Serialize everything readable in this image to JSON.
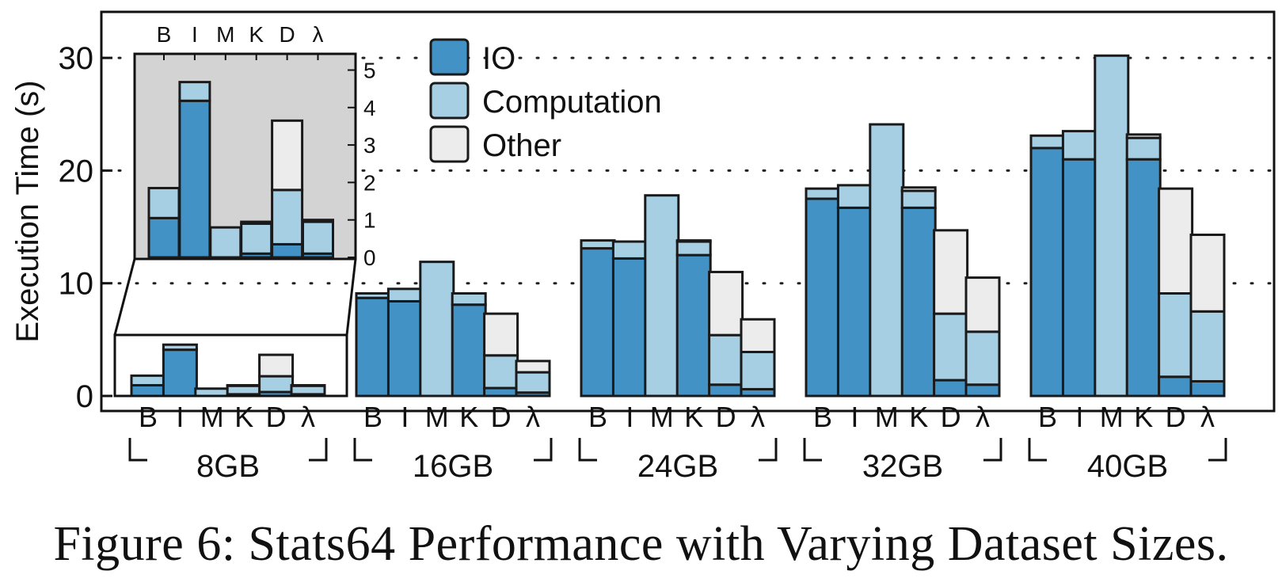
{
  "caption": "Figure 6: Stats64 Performance with Varying Dataset Sizes.",
  "colors": {
    "io": "#4292c6",
    "computation": "#a6cfe4",
    "other": "#ececec",
    "inset_background": "#d3d3d3",
    "edge": "#1a1a1a"
  },
  "chart_data": {
    "type": "bar",
    "stacked": true,
    "ylabel": "Execution Time (s)",
    "ylim": [
      0,
      33
    ],
    "yticks": [
      0,
      10,
      20,
      30
    ],
    "grid": "horizontal dotted",
    "legend_placement": "top-center",
    "legend": [
      "IO",
      "Computation",
      "Other"
    ],
    "systems": [
      "B",
      "I",
      "M",
      "K",
      "D",
      "λ"
    ],
    "groups": [
      {
        "label": "8GB",
        "bars": [
          {
            "system": "B",
            "io": 0.95,
            "computation": 0.85,
            "other": 0.0
          },
          {
            "system": "I",
            "io": 4.1,
            "computation": 0.45,
            "other": 0.0
          },
          {
            "system": "M",
            "io": 0.0,
            "computation": 0.65,
            "other": 0.0
          },
          {
            "system": "K",
            "io": 0.15,
            "computation": 0.75,
            "other": 0.05
          },
          {
            "system": "D",
            "io": 0.35,
            "computation": 1.4,
            "other": 1.9
          },
          {
            "system": "λ",
            "io": 0.15,
            "computation": 0.75,
            "other": 0.05
          }
        ]
      },
      {
        "label": "16GB",
        "bars": [
          {
            "system": "B",
            "io": 8.7,
            "computation": 0.4,
            "other": 0.0
          },
          {
            "system": "I",
            "io": 8.4,
            "computation": 1.1,
            "other": 0.0
          },
          {
            "system": "M",
            "io": 0.0,
            "computation": 11.9,
            "other": 0.0
          },
          {
            "system": "K",
            "io": 8.1,
            "computation": 1.0,
            "other": 0.0
          },
          {
            "system": "D",
            "io": 0.7,
            "computation": 2.9,
            "other": 3.7
          },
          {
            "system": "λ",
            "io": 0.3,
            "computation": 1.8,
            "other": 1.0
          }
        ]
      },
      {
        "label": "24GB",
        "bars": [
          {
            "system": "B",
            "io": 13.1,
            "computation": 0.7,
            "other": 0.0
          },
          {
            "system": "I",
            "io": 12.2,
            "computation": 1.5,
            "other": 0.0
          },
          {
            "system": "M",
            "io": 0.0,
            "computation": 17.8,
            "other": 0.0
          },
          {
            "system": "K",
            "io": 12.5,
            "computation": 1.2,
            "other": 0.1
          },
          {
            "system": "D",
            "io": 1.0,
            "computation": 4.4,
            "other": 5.6
          },
          {
            "system": "λ",
            "io": 0.6,
            "computation": 3.3,
            "other": 2.9
          }
        ]
      },
      {
        "label": "32GB",
        "bars": [
          {
            "system": "B",
            "io": 17.5,
            "computation": 0.9,
            "other": 0.0
          },
          {
            "system": "I",
            "io": 16.7,
            "computation": 2.0,
            "other": 0.0
          },
          {
            "system": "M",
            "io": 0.0,
            "computation": 24.1,
            "other": 0.0
          },
          {
            "system": "K",
            "io": 16.7,
            "computation": 1.5,
            "other": 0.3
          },
          {
            "system": "D",
            "io": 1.4,
            "computation": 5.9,
            "other": 7.4
          },
          {
            "system": "λ",
            "io": 1.0,
            "computation": 4.7,
            "other": 4.8
          }
        ]
      },
      {
        "label": "40GB",
        "bars": [
          {
            "system": "B",
            "io": 22.0,
            "computation": 1.1,
            "other": 0.0
          },
          {
            "system": "I",
            "io": 21.0,
            "computation": 2.5,
            "other": 0.0
          },
          {
            "system": "M",
            "io": 0.0,
            "computation": 30.2,
            "other": 0.0
          },
          {
            "system": "K",
            "io": 21.0,
            "computation": 1.9,
            "other": 0.3
          },
          {
            "system": "D",
            "io": 1.7,
            "computation": 7.4,
            "other": 9.3
          },
          {
            "system": "λ",
            "io": 1.3,
            "computation": 6.2,
            "other": 6.8
          }
        ]
      }
    ],
    "inset": {
      "of_group": "8GB",
      "ylim": [
        0,
        5.2
      ],
      "yticks": [
        0,
        1,
        2,
        3,
        4,
        5
      ],
      "tick_labels": [
        "0",
        "1",
        "2",
        "3",
        "4",
        "5"
      ],
      "systems": [
        "B",
        "I",
        "M",
        "K",
        "D",
        "λ"
      ],
      "bars": [
        {
          "system": "B",
          "io": 1.05,
          "computation": 0.8,
          "other": 0.0
        },
        {
          "system": "I",
          "io": 4.18,
          "computation": 0.5,
          "other": 0.0
        },
        {
          "system": "M",
          "io": 0.0,
          "computation": 0.8,
          "other": 0.0
        },
        {
          "system": "K",
          "io": 0.1,
          "computation": 0.8,
          "other": 0.05
        },
        {
          "system": "D",
          "io": 0.35,
          "computation": 1.45,
          "other": 1.85
        },
        {
          "system": "λ",
          "io": 0.1,
          "computation": 0.85,
          "other": 0.05
        }
      ]
    }
  }
}
